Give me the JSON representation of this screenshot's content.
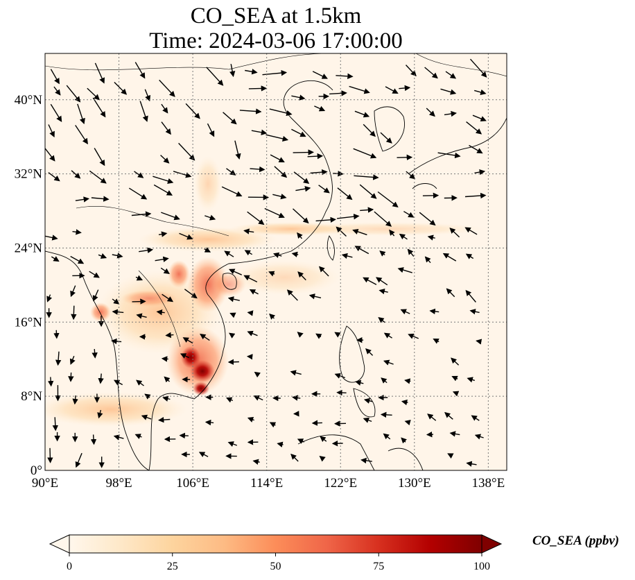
{
  "title_line1": "CO_SEA at 1.5km",
  "title_line2": "Time: 2024-03-06 17:00:00",
  "map": {
    "projection": "PlateCarree",
    "lon_range": [
      90,
      140
    ],
    "lat_range": [
      0,
      45
    ],
    "lon_ticks": [
      "90°E",
      "98°E",
      "106°E",
      "114°E",
      "122°E",
      "130°E",
      "138°E"
    ],
    "lon_tick_values": [
      90,
      98,
      106,
      114,
      122,
      130,
      138
    ],
    "lat_ticks": [
      "0°",
      "8°N",
      "16°N",
      "24°N",
      "32°N",
      "40°N"
    ],
    "lat_tick_values": [
      0,
      8,
      16,
      24,
      32,
      40
    ],
    "gridlines": "dotted",
    "field_colormap": "OrRd",
    "overlay": "wind vectors (arrows)"
  },
  "colorbar": {
    "label": "CO_SEA (ppbv)",
    "ticks": [
      "0",
      "25",
      "50",
      "75",
      "100"
    ],
    "tick_values": [
      0,
      25,
      50,
      75,
      100
    ],
    "range": [
      0,
      100
    ],
    "extend": "both",
    "colors": [
      "#fff7ec",
      "#fee8c8",
      "#fdd49e",
      "#fdbb84",
      "#fc8d59",
      "#ef6548",
      "#d7301f",
      "#b30000",
      "#7f0000"
    ]
  }
}
